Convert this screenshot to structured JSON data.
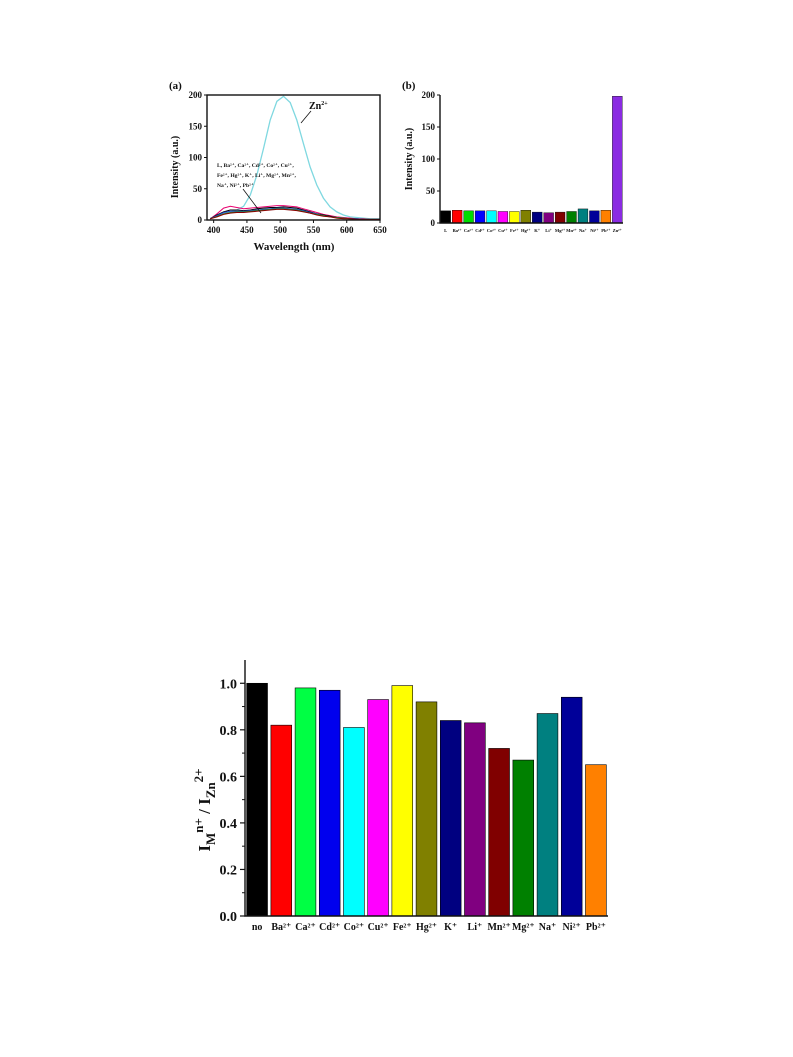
{
  "chart_data": [
    {
      "panel_label": "(a)",
      "type": "line",
      "xlabel": "Wavelength (nm)",
      "ylabel": "Intensity (a.u.)",
      "xlim": [
        390,
        650
      ],
      "ylim": [
        0,
        200
      ],
      "xticks": [
        400,
        450,
        500,
        550,
        600,
        650
      ],
      "yticks": [
        0,
        50,
        100,
        150,
        200
      ],
      "annotations": {
        "zn_label": "Zn",
        "zn_charge": "2+",
        "others_line1": "L, Ba²⁺, Ca²⁺, Cd²⁺, Co²⁺, Cu²⁺,",
        "others_line2": "Fe²⁺, Hg²⁺, K⁺, Li⁺, Mg²⁺, Mn²⁺,",
        "others_line3": "Na⁺, Ni²⁺, Pb²⁺"
      },
      "x": [
        395,
        405,
        415,
        425,
        435,
        445,
        455,
        465,
        475,
        485,
        495,
        505,
        515,
        525,
        535,
        545,
        555,
        565,
        575,
        585,
        595,
        605,
        615,
        625,
        635,
        645,
        650
      ],
      "series": [
        {
          "color": "#7fd8e0",
          "values": [
            3,
            6,
            10,
            13,
            16,
            22,
            40,
            72,
            115,
            160,
            190,
            198,
            188,
            160,
            122,
            85,
            56,
            35,
            21,
            13,
            8,
            5,
            4,
            3,
            2,
            2,
            2
          ]
        },
        {
          "color": "#e8006f",
          "values": [
            2,
            10,
            19,
            22,
            20,
            18,
            19,
            20,
            21,
            22,
            23,
            23,
            22,
            21,
            18,
            15,
            12,
            9,
            7,
            5,
            4,
            3,
            2,
            2,
            1,
            1,
            1
          ]
        },
        {
          "color": "#000000",
          "values": [
            2,
            8,
            13,
            16,
            16,
            15,
            16,
            18,
            19,
            20,
            20,
            21,
            20,
            19,
            16,
            13,
            10,
            8,
            6,
            4,
            3,
            2,
            2,
            1,
            1,
            1,
            1
          ]
        },
        {
          "color": "#2244cc",
          "values": [
            2,
            7,
            12,
            14,
            14,
            14,
            15,
            16,
            17,
            18,
            19,
            19,
            18,
            17,
            15,
            12,
            10,
            7,
            5,
            4,
            3,
            2,
            2,
            1,
            1,
            1,
            1
          ]
        },
        {
          "color": "#2a8a2a",
          "values": [
            2,
            6,
            10,
            12,
            13,
            13,
            14,
            15,
            16,
            17,
            18,
            18,
            17,
            16,
            14,
            11,
            9,
            7,
            5,
            4,
            3,
            2,
            1,
            1,
            1,
            1,
            1
          ]
        },
        {
          "color": "#8b0000",
          "values": [
            2,
            5,
            9,
            11,
            12,
            12,
            13,
            14,
            15,
            16,
            17,
            17,
            16,
            15,
            13,
            11,
            8,
            6,
            5,
            3,
            2,
            2,
            1,
            1,
            1,
            1,
            1
          ]
        }
      ]
    },
    {
      "panel_label": "(b)",
      "type": "bar",
      "ylabel": "Intensity (a.u.)",
      "ylim": [
        0,
        200
      ],
      "yticks": [
        0,
        50,
        100,
        150,
        200
      ],
      "categories": [
        "L",
        "Ba²⁺",
        "Ca²⁺",
        "Cd²⁺",
        "Co²⁺",
        "Cu²⁺",
        "Fe²⁺",
        "Hg²⁺",
        "K⁺",
        "Li⁺",
        "Mg²⁺",
        "Mn²⁺",
        "Na⁺",
        "Ni²⁺",
        "Pb²⁺",
        "Zn²⁺"
      ],
      "values": [
        19,
        20,
        19,
        19,
        19,
        18,
        18,
        20,
        17,
        16,
        17,
        18,
        22,
        19,
        20,
        198
      ],
      "colors": [
        "#000000",
        "#ff0000",
        "#00dd00",
        "#0000ff",
        "#00ffff",
        "#ff00ff",
        "#ffff00",
        "#808000",
        "#000080",
        "#800080",
        "#800000",
        "#008000",
        "#008080",
        "#000099",
        "#ff8000",
        "#8a2be2"
      ]
    },
    {
      "type": "bar",
      "ylabel_main": "I",
      "ylabel_sub1": "M",
      "ylabel_sup1": "n+",
      "ylabel_sep": " / I",
      "ylabel_sub2": "Zn",
      "ylabel_sup2": "2+",
      "ylim": [
        0,
        1.1
      ],
      "yticks": [
        0.0,
        0.2,
        0.4,
        0.6,
        0.8,
        1.0
      ],
      "categories": [
        "no",
        "Ba²⁺",
        "Ca²⁺",
        "Cd²⁺",
        "Co²⁺",
        "Cu²⁺",
        "Fe²⁺",
        "Hg²⁺",
        "K⁺",
        "Li⁺",
        "Mn²⁺",
        "Mg²⁺",
        "Na⁺",
        "Ni²⁺",
        "Pb²⁺"
      ],
      "values": [
        1.0,
        0.82,
        0.98,
        0.97,
        0.81,
        0.93,
        0.99,
        0.92,
        0.84,
        0.83,
        0.72,
        0.67,
        0.87,
        0.94,
        0.65
      ],
      "colors": [
        "#000000",
        "#ff0000",
        "#00ff44",
        "#0000ee",
        "#00ffff",
        "#ff00ff",
        "#ffff00",
        "#808000",
        "#000080",
        "#800080",
        "#800000",
        "#008000",
        "#008080",
        "#000099",
        "#ff8000"
      ]
    }
  ]
}
